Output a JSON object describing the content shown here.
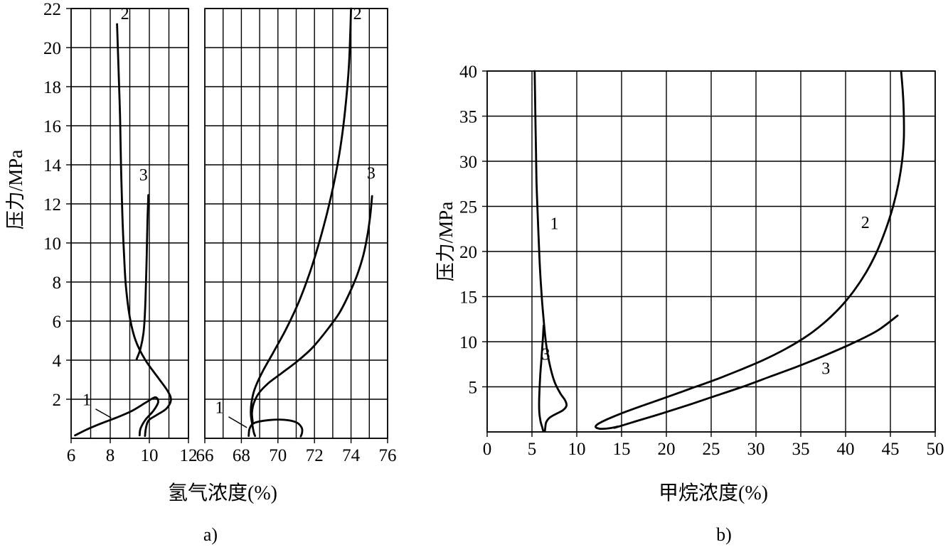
{
  "colors": {
    "line": "#000000",
    "grid": "#000000",
    "background": "#ffffff",
    "text": "#000000"
  },
  "chart_data": [
    {
      "id": "a",
      "type": "line",
      "caption": "a)",
      "xlabel": "氢气浓度(%)",
      "ylabel": "压力/MPa",
      "ylim": [
        0,
        22
      ],
      "yticks": [
        2,
        4,
        6,
        8,
        10,
        12,
        14,
        16,
        18,
        20,
        22
      ],
      "ygrid_step": 2,
      "grid": true,
      "legend": "none",
      "panels": [
        {
          "xlim": [
            6,
            12
          ],
          "xticks": [
            6,
            8,
            10,
            12
          ],
          "xgrid_step": 1,
          "series": [
            {
              "name": "1",
              "label": "1",
              "label_at": [
                6.8,
                1.7
              ],
              "leader": [
                [
                  7.25,
                  1.5
                ],
                [
                  8.05,
                  1.05
                ]
              ],
              "points": [
                [
                  6.2,
                  0.15
                ],
                [
                  6.8,
                  0.45
                ],
                [
                  7.5,
                  0.75
                ],
                [
                  8.3,
                  1.05
                ],
                [
                  9.1,
                  1.4
                ],
                [
                  9.85,
                  1.85
                ],
                [
                  10.3,
                  2.1
                ],
                [
                  10.45,
                  1.85
                ],
                [
                  10.2,
                  1.4
                ],
                [
                  9.8,
                  0.95
                ],
                [
                  9.55,
                  0.5
                ],
                [
                  9.5,
                  0.15
                ]
              ]
            },
            {
              "name": "2",
              "label": "2",
              "label_at": [
                8.75,
                21.45
              ],
              "points": [
                [
                  8.35,
                  21.2
                ],
                [
                  8.42,
                  19.0
                ],
                [
                  8.5,
                  16.5
                ],
                [
                  8.55,
                  14.0
                ],
                [
                  8.62,
                  11.5
                ],
                [
                  8.7,
                  9.5
                ],
                [
                  8.8,
                  7.8
                ],
                [
                  9.0,
                  6.2
                ],
                [
                  9.3,
                  5.0
                ],
                [
                  9.8,
                  4.0
                ],
                [
                  10.45,
                  3.1
                ],
                [
                  10.95,
                  2.4
                ],
                [
                  11.1,
                  1.95
                ],
                [
                  10.85,
                  1.5
                ],
                [
                  10.3,
                  1.15
                ],
                [
                  9.95,
                  0.9
                ],
                [
                  9.82,
                  0.5
                ],
                [
                  9.78,
                  0.12
                ]
              ]
            },
            {
              "name": "3",
              "label": "3",
              "label_at": [
                9.7,
                13.2
              ],
              "points": [
                [
                  9.95,
                  12.45
                ],
                [
                  9.9,
                  11.0
                ],
                [
                  9.87,
                  9.5
                ],
                [
                  9.83,
                  8.0
                ],
                [
                  9.78,
                  6.5
                ],
                [
                  9.7,
                  5.4
                ],
                [
                  9.55,
                  4.6
                ],
                [
                  9.35,
                  4.05
                ]
              ]
            }
          ]
        },
        {
          "xlim": [
            66,
            76
          ],
          "xticks": [
            66,
            68,
            70,
            72,
            74,
            76
          ],
          "xgrid_step": 1,
          "series": [
            {
              "name": "1",
              "label": "1",
              "label_at": [
                66.8,
                1.3
              ],
              "leader": [
                [
                  67.3,
                  1.1
                ],
                [
                  68.3,
                  0.55
                ]
              ],
              "points": [
                [
                  68.4,
                  0.12
                ],
                [
                  68.45,
                  0.5
                ],
                [
                  68.7,
                  0.78
                ],
                [
                  69.4,
                  0.92
                ],
                [
                  70.3,
                  0.95
                ],
                [
                  71.0,
                  0.82
                ],
                [
                  71.3,
                  0.55
                ],
                [
                  71.32,
                  0.28
                ],
                [
                  71.25,
                  0.1
                ]
              ]
            },
            {
              "name": "2",
              "label": "2",
              "label_at": [
                74.35,
                21.45
              ],
              "points": [
                [
                  74.0,
                  22.0
                ],
                [
                  73.95,
                  20.5
                ],
                [
                  73.88,
                  19.0
                ],
                [
                  73.75,
                  17.5
                ],
                [
                  73.58,
                  16.0
                ],
                [
                  73.35,
                  14.5
                ],
                [
                  73.05,
                  13.0
                ],
                [
                  72.68,
                  11.5
                ],
                [
                  72.25,
                  10.0
                ],
                [
                  71.75,
                  8.5
                ],
                [
                  71.15,
                  7.0
                ],
                [
                  70.45,
                  5.6
                ],
                [
                  69.75,
                  4.4
                ],
                [
                  69.15,
                  3.4
                ],
                [
                  68.72,
                  2.5
                ],
                [
                  68.55,
                  1.8
                ],
                [
                  68.52,
                  1.2
                ],
                [
                  68.6,
                  0.7
                ],
                [
                  68.68,
                  0.3
                ],
                [
                  68.75,
                  0.12
                ]
              ]
            },
            {
              "name": "3",
              "label": "3",
              "label_at": [
                75.1,
                13.3
              ],
              "points": [
                [
                  75.15,
                  12.4
                ],
                [
                  75.05,
                  11.4
                ],
                [
                  74.9,
                  10.4
                ],
                [
                  74.68,
                  9.4
                ],
                [
                  74.35,
                  8.4
                ],
                [
                  73.9,
                  7.4
                ],
                [
                  73.35,
                  6.4
                ],
                [
                  72.65,
                  5.5
                ],
                [
                  71.85,
                  4.6
                ],
                [
                  71.0,
                  3.9
                ],
                [
                  70.15,
                  3.3
                ],
                [
                  69.45,
                  2.8
                ],
                [
                  68.95,
                  2.3
                ],
                [
                  68.68,
                  1.8
                ],
                [
                  68.58,
                  1.3
                ],
                [
                  68.62,
                  0.85
                ]
              ]
            }
          ]
        }
      ]
    },
    {
      "id": "b",
      "type": "line",
      "caption": "b)",
      "xlabel": "甲烷浓度(%)",
      "ylabel": "压力/MPa",
      "ylim": [
        0,
        40
      ],
      "yticks": [
        5,
        10,
        15,
        20,
        25,
        30,
        35,
        40
      ],
      "ygrid_step": 5,
      "grid": true,
      "legend": "none",
      "panels": [
        {
          "xlim": [
            0,
            50
          ],
          "xticks": [
            0,
            5,
            10,
            15,
            20,
            25,
            30,
            35,
            40,
            45,
            50
          ],
          "xgrid_step": 5,
          "series": [
            {
              "name": "1",
              "label": "1",
              "label_at": [
                7.5,
                22.5
              ],
              "points": [
                [
                  5.3,
                  40.0
                ],
                [
                  5.35,
                  37.0
                ],
                [
                  5.4,
                  34.0
                ],
                [
                  5.45,
                  31.0
                ],
                [
                  5.5,
                  28.0
                ],
                [
                  5.6,
                  25.0
                ],
                [
                  5.72,
                  22.0
                ],
                [
                  5.85,
                  19.0
                ],
                [
                  6.02,
                  16.0
                ],
                [
                  6.25,
                  13.0
                ],
                [
                  6.55,
                  10.0
                ],
                [
                  6.95,
                  7.6
                ],
                [
                  7.5,
                  5.6
                ],
                [
                  8.15,
                  4.3
                ],
                [
                  8.7,
                  3.5
                ],
                [
                  8.85,
                  2.9
                ],
                [
                  8.45,
                  2.4
                ],
                [
                  7.7,
                  2.0
                ],
                [
                  7.0,
                  1.6
                ],
                [
                  6.6,
                  1.1
                ],
                [
                  6.5,
                  0.6
                ],
                [
                  6.45,
                  0.15
                ]
              ]
            },
            {
              "name": "3a",
              "label": "3",
              "label_at": [
                6.55,
                8.0
              ],
              "points": [
                [
                  6.3,
                  11.8
                ],
                [
                  6.22,
                  10.4
                ],
                [
                  6.12,
                  9.0
                ],
                [
                  6.02,
                  7.6
                ],
                [
                  5.92,
                  6.2
                ],
                [
                  5.85,
                  4.8
                ],
                [
                  5.8,
                  3.4
                ],
                [
                  5.82,
                  2.2
                ],
                [
                  5.95,
                  1.2
                ],
                [
                  6.15,
                  0.5
                ],
                [
                  6.25,
                  0.12
                ]
              ]
            },
            {
              "name": "2",
              "label": "2",
              "label_at": [
                42.2,
                22.6
              ],
              "points": [
                [
                  46.2,
                  40.0
                ],
                [
                  46.4,
                  37.5
                ],
                [
                  46.5,
                  35.0
                ],
                [
                  46.5,
                  32.5
                ],
                [
                  46.3,
                  30.0
                ],
                [
                  45.9,
                  27.5
                ],
                [
                  45.3,
                  25.0
                ],
                [
                  44.5,
                  22.5
                ],
                [
                  43.5,
                  20.0
                ],
                [
                  42.3,
                  17.7
                ],
                [
                  40.9,
                  15.6
                ],
                [
                  39.3,
                  13.7
                ],
                [
                  37.5,
                  12.0
                ],
                [
                  35.5,
                  10.5
                ],
                [
                  33.3,
                  9.2
                ],
                [
                  30.9,
                  8.0
                ],
                [
                  28.3,
                  6.9
                ],
                [
                  25.5,
                  5.8
                ],
                [
                  22.7,
                  4.8
                ],
                [
                  19.9,
                  3.8
                ],
                [
                  17.3,
                  2.9
                ],
                [
                  15.1,
                  2.1
                ],
                [
                  13.4,
                  1.4
                ],
                [
                  12.4,
                  0.9
                ],
                [
                  12.1,
                  0.55
                ],
                [
                  12.6,
                  0.35
                ],
                [
                  13.6,
                  0.4
                ],
                [
                  14.6,
                  0.6
                ]
              ]
            },
            {
              "name": "3b",
              "label": "3",
              "label_at": [
                37.8,
                6.4
              ],
              "points": [
                [
                  14.2,
                  0.45
                ],
                [
                  16.5,
                  1.15
                ],
                [
                  19.5,
                  2.05
                ],
                [
                  22.5,
                  3.0
                ],
                [
                  25.5,
                  4.0
                ],
                [
                  28.5,
                  5.0
                ],
                [
                  31.5,
                  6.1
                ],
                [
                  34.5,
                  7.2
                ],
                [
                  37.5,
                  8.4
                ],
                [
                  40.5,
                  9.7
                ],
                [
                  43.5,
                  11.2
                ],
                [
                  45.8,
                  12.9
                ]
              ]
            }
          ]
        }
      ]
    }
  ]
}
